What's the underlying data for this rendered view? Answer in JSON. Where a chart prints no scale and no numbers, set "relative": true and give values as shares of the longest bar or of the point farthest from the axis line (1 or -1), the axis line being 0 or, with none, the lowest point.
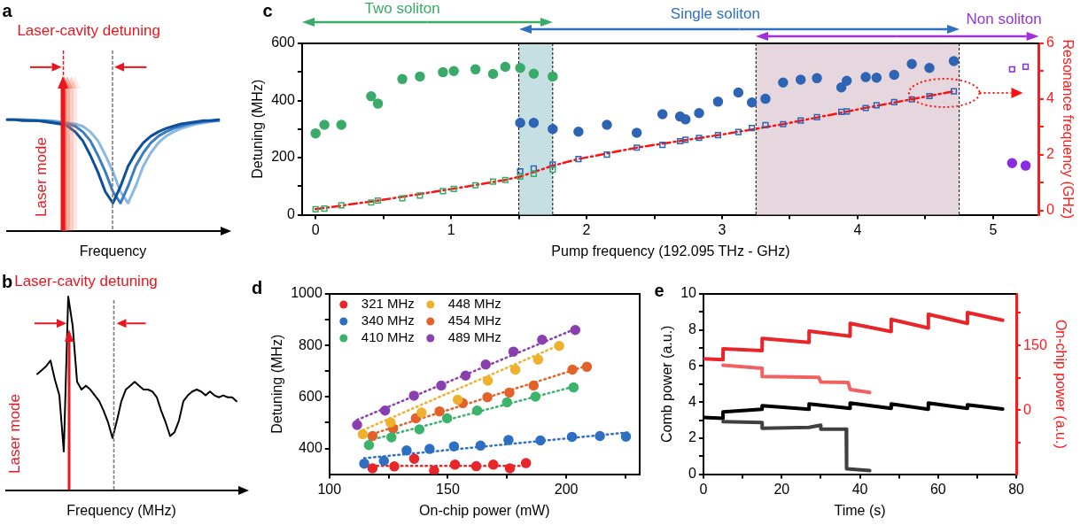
{
  "chart_data": [
    {
      "type": "line",
      "title": "a",
      "xlabel": "Frequency",
      "annotations": [
        "Laser-cavity detuning",
        "Laser mode"
      ],
      "relative": true,
      "tick_labels": false,
      "categories": [
        null,
        null,
        null,
        null,
        null,
        null,
        null,
        null,
        null,
        null,
        null,
        null,
        null,
        null,
        null,
        null,
        null,
        null,
        null,
        null,
        null,
        null,
        null,
        null,
        null,
        null,
        null,
        null,
        null
      ],
      "series": [
        {
          "color": "#0d4f9c",
          "values": [
            1.0,
            1.0,
            0.99,
            0.99,
            0.99,
            0.98,
            0.97,
            0.96,
            0.94,
            0.89,
            0.81,
            0.68,
            0.53,
            0.35,
            0.25,
            0.4,
            0.58,
            0.7,
            0.79,
            0.85,
            0.89,
            0.92,
            0.94,
            0.96,
            0.97,
            0.98,
            0.99,
            0.99,
            1.0
          ]
        },
        {
          "color": "#3a7dc0",
          "values": [
            1.0,
            1.0,
            1.0,
            0.99,
            0.99,
            0.99,
            0.98,
            0.97,
            0.96,
            0.94,
            0.89,
            0.81,
            0.68,
            0.53,
            0.35,
            0.25,
            0.4,
            0.58,
            0.7,
            0.79,
            0.85,
            0.89,
            0.92,
            0.94,
            0.96,
            0.97,
            0.98,
            0.99,
            0.99
          ]
        },
        {
          "color": "#8ab8e0",
          "values": [
            1.0,
            1.0,
            1.0,
            1.0,
            0.99,
            0.99,
            0.99,
            0.98,
            0.97,
            0.96,
            0.94,
            0.89,
            0.81,
            0.68,
            0.53,
            0.35,
            0.25,
            0.4,
            0.58,
            0.7,
            0.79,
            0.85,
            0.89,
            0.92,
            0.94,
            0.96,
            0.97,
            0.98,
            0.99
          ]
        }
      ]
    },
    {
      "type": "line",
      "title": "b",
      "xlabel": "Frequency (MHz)",
      "annotations": [
        "Laser-cavity detuning",
        "Laser mode"
      ],
      "relative": true,
      "tick_labels": false,
      "categories": [
        null,
        null,
        null,
        null,
        null,
        null,
        null,
        null,
        null,
        null,
        null,
        null,
        null,
        null,
        null,
        null,
        null,
        null,
        null,
        null,
        null,
        null,
        null,
        null,
        null,
        null,
        null,
        null,
        null,
        null,
        null,
        null,
        null,
        null,
        null,
        null,
        null,
        null,
        null,
        null,
        null,
        null,
        null,
        null,
        null,
        null,
        null,
        null,
        null,
        null,
        null,
        null,
        null
      ],
      "series": [
        {
          "color": "#000000",
          "values": [
            null,
            null,
            null,
            null,
            null,
            null,
            null,
            0.6,
            0.62,
            0.64,
            0.67,
            0.57,
            0.49,
            0.2,
            1.0,
            0.85,
            0.56,
            0.52,
            0.54,
            0.52,
            0.49,
            0.46,
            0.41,
            0.35,
            0.27,
            0.36,
            0.46,
            0.52,
            0.54,
            0.56,
            0.54,
            0.52,
            0.52,
            0.51,
            0.48,
            0.41,
            0.35,
            0.28,
            0.3,
            0.36,
            0.46,
            0.49,
            0.51,
            0.52,
            0.51,
            0.49,
            0.51,
            0.49,
            0.48,
            0.49,
            0.48,
            0.48,
            0.46
          ]
        }
      ]
    },
    {
      "type": "scatter",
      "title": "c",
      "xlabel": "Pump frequency (192.095 THz - GHz)",
      "ylabel": "Detuning (MHz)",
      "y2label": "Resonance frequency (GHz)",
      "annotations": [
        "Two soliton",
        "Single soliton",
        "Non soliton"
      ],
      "xlim": [
        -0.1,
        5.34
      ],
      "xticks": [
        0,
        {
          "value": 0.5,
          "label": null
        },
        1,
        {
          "value": 1.5,
          "label": null
        },
        2,
        {
          "value": 2.5,
          "label": null
        },
        3,
        {
          "value": 3.5,
          "label": null
        },
        4,
        {
          "value": 4.5,
          "label": null
        },
        5
      ],
      "ylim": [
        0,
        600
      ],
      "yticks": [
        0,
        {
          "value": 100,
          "label": null
        },
        200,
        {
          "value": 300,
          "label": null
        },
        400,
        {
          "value": 500,
          "label": null
        },
        600
      ],
      "y2lim": [
        -0.15,
        6
      ],
      "y2ticks": [
        0,
        {
          "value": 1,
          "label": null
        },
        2,
        {
          "value": 3,
          "label": null
        },
        4,
        {
          "value": 5,
          "label": null
        },
        6
      ],
      "bands": [
        {
          "axis": "x",
          "from": 1.5,
          "to": 1.75,
          "color": "#c6dfe2"
        },
        {
          "axis": "x",
          "from": 3.25,
          "to": 4.75,
          "color": "#e6d6de"
        }
      ],
      "series": [
        {
          "color": "#3aaa68",
          "marker": "circle",
          "x": [
            0,
            0.065,
            0.19,
            0.41,
            0.46,
            0.64,
            0.77,
            0.94,
            1.02,
            1.18,
            1.31,
            1.4,
            1.51,
            1.61,
            1.75
          ],
          "values": [
            285,
            315,
            315,
            415,
            389,
            475,
            484,
            499,
            503,
            509,
            493,
            518,
            514,
            494,
            484
          ]
        },
        {
          "color": "#2e64b4",
          "marker": "circle",
          "x": [
            1.51,
            1.61,
            1.75,
            1.94,
            2.15,
            2.37,
            2.56,
            2.69,
            2.73,
            2.83,
            2.97,
            3.12,
            3.22,
            3.32,
            3.45,
            3.58,
            3.7,
            3.88,
            3.92,
            4.06,
            4.14,
            4.27,
            4.4,
            4.53,
            4.71
          ],
          "values": [
            322,
            322,
            300,
            291,
            315,
            287,
            352,
            344,
            334,
            356,
            396,
            428,
            393,
            406,
            463,
            473,
            478,
            446,
            469,
            482,
            480,
            490,
            528,
            514,
            538
          ]
        },
        {
          "color": "#8a2be2",
          "marker": "circle",
          "x": [
            5.14,
            5.24
          ],
          "values": [
            181,
            172
          ]
        },
        {
          "color": "#3aaa68",
          "marker": "square",
          "axis": "y2",
          "x": [
            0,
            0.065,
            0.19,
            0.41,
            0.46,
            0.64,
            0.77,
            0.94,
            1.02,
            1.18,
            1.31,
            1.4,
            1.51,
            1.61,
            1.75
          ],
          "values": [
            0.05,
            0.07,
            0.19,
            0.29,
            0.36,
            0.44,
            0.54,
            0.7,
            0.78,
            0.91,
            1.04,
            1.1,
            1.22,
            1.32,
            1.47
          ]
        },
        {
          "color": "#2e64b4",
          "marker": "square",
          "axis": "y2",
          "x": [
            1.51,
            1.61,
            1.75,
            1.94,
            2.15,
            2.37,
            2.56,
            2.69,
            2.73,
            2.83,
            2.97,
            3.12,
            3.22,
            3.32,
            3.45,
            3.58,
            3.7,
            3.88,
            3.92,
            4.06,
            4.14,
            4.27,
            4.4,
            4.53,
            4.71
          ],
          "values": [
            1.41,
            1.51,
            1.65,
            1.85,
            2.01,
            2.26,
            2.36,
            2.49,
            2.54,
            2.61,
            2.71,
            2.82,
            2.96,
            3.07,
            3.1,
            3.23,
            3.35,
            3.54,
            3.56,
            3.68,
            3.78,
            3.89,
            3.99,
            4.11,
            4.28
          ]
        },
        {
          "color": "#8a2be2",
          "marker": "square",
          "axis": "y2",
          "x": [
            5.14,
            5.24
          ],
          "values": [
            5.07,
            5.16
          ]
        },
        {
          "type": "line",
          "color": "#ff1010",
          "marker": "none",
          "line_style": "dashed",
          "axis": "y2",
          "x": [
            0,
            0.46,
            1,
            1.4,
            1.51,
            1.75,
            1.94,
            2.37,
            3,
            3.45,
            4,
            4.71
          ],
          "values": [
            0.05,
            0.36,
            0.77,
            1.1,
            1.22,
            1.61,
            1.85,
            2.26,
            2.73,
            3.1,
            3.63,
            4.28
          ]
        }
      ]
    },
    {
      "type": "scatter",
      "title": "d",
      "xlabel": "On-chip power (mW)",
      "ylabel": "Detuning (MHz)",
      "legend": "top left",
      "marker": "circle",
      "xlim": [
        100,
        231
      ],
      "xticks": [
        100,
        {
          "value": 125,
          "label": null
        },
        150,
        {
          "value": 175,
          "label": null
        },
        200,
        {
          "value": 225,
          "label": null
        }
      ],
      "ylim": [
        300,
        1000
      ],
      "yticks": [
        400,
        {
          "value": 500,
          "label": null
        },
        600,
        {
          "value": 700,
          "label": null
        },
        800,
        {
          "value": 900,
          "label": null
        },
        1000
      ],
      "series": [
        {
          "name": "321 MHz",
          "color": "#e8262a",
          "x": [
            118.2,
            127.4,
            135.8,
            144.2,
            153,
            162,
            169.2,
            176.2,
            183
          ],
          "values": [
            323,
            330,
            360,
            314,
            337,
            331,
            337,
            323,
            343
          ]
        },
        {
          "name": "340 MHz",
          "color": "#2e6fc4",
          "x": [
            114.7,
            123,
            132.6,
            142.3,
            152.6,
            163.8,
            175.6,
            189.1,
            202.4,
            214.2,
            225.2
          ],
          "values": [
            341,
            352,
            392,
            398,
            408,
            411,
            433,
            431,
            445,
            448,
            446
          ]
        },
        {
          "name": "410 MHz",
          "color": "#3bb36a",
          "x": [
            116.7,
            126.2,
            138,
            149.7,
            162.4,
            175,
            187,
            203.1
          ],
          "values": [
            413,
            443,
            474,
            517,
            547,
            579,
            601,
            637
          ]
        },
        {
          "name": "448 MHz",
          "color": "#efb02e",
          "x": [
            114.1,
            125.8,
            138.9,
            154.2,
            166.9,
            178.5,
            188.1,
            197
          ],
          "values": [
            455,
            501,
            539,
            589,
            663,
            706,
            745,
            798
          ]
        },
        {
          "name": "454 MHz",
          "color": "#e2622a",
          "x": [
            118.2,
            126.9,
            136.5,
            146.5,
            156.3,
            166.7,
            176,
            186.2,
            202.6,
            208.7
          ],
          "values": [
            448,
            477,
            517,
            544,
            576,
            599,
            617,
            644,
            706,
            717
          ]
        },
        {
          "name": "489 MHz",
          "color": "#8a3fb0",
          "x": [
            111.7,
            123.5,
            135.7,
            147.2,
            157.5,
            166,
            177.7,
            189.8,
            203.8
          ],
          "values": [
            491,
            547,
            605,
            644,
            683,
            726,
            776,
            822,
            860
          ]
        },
        {
          "type": "line",
          "color": "#e8262a",
          "marker": "none",
          "line_style": "dotted",
          "x": [
            118,
            183
          ],
          "values": [
            332,
            332
          ]
        },
        {
          "type": "line",
          "color": "#2e6fc4",
          "marker": "none",
          "line_style": "dotted",
          "x": [
            114.7,
            226
          ],
          "values": [
            362,
            462
          ]
        },
        {
          "type": "line",
          "color": "#3bb36a",
          "marker": "none",
          "line_style": "dotted",
          "x": [
            116.7,
            203.1
          ],
          "values": [
            431,
            640
          ]
        },
        {
          "type": "line",
          "color": "#efb02e",
          "marker": "none",
          "line_style": "dotted",
          "x": [
            114.1,
            197
          ],
          "values": [
            471,
            801
          ]
        },
        {
          "type": "line",
          "color": "#e2622a",
          "marker": "none",
          "line_style": "dotted",
          "x": [
            118.2,
            208.7
          ],
          "values": [
            456,
            721
          ]
        },
        {
          "type": "line",
          "color": "#8a3fb0",
          "marker": "none",
          "line_style": "dotted",
          "x": [
            111.7,
            203.8
          ],
          "values": [
            511,
            864
          ]
        }
      ]
    },
    {
      "type": "line",
      "title": "e",
      "xlabel": "Time (s)",
      "ylabel": "Comb power (a.u.)",
      "y2label": "On-chip power (a.u.)",
      "xlim": [
        0,
        80
      ],
      "xticks": [
        0,
        {
          "value": 10,
          "label": null
        },
        20,
        {
          "value": 30,
          "label": null
        },
        40,
        {
          "value": 50,
          "label": null
        },
        60,
        {
          "value": 70,
          "label": null
        },
        80
      ],
      "ylim": [
        0,
        10
      ],
      "yticks": [
        0,
        {
          "value": 1,
          "label": null
        },
        2,
        {
          "value": 3,
          "label": null
        },
        4,
        {
          "value": 5,
          "label": null
        },
        6,
        {
          "value": 7,
          "label": null
        },
        8,
        {
          "value": 9,
          "label": null
        },
        10
      ],
      "y2lim": [
        -148,
        269
      ],
      "y2ticks": [
        {
          "value": -75,
          "label": null
        },
        0,
        {
          "value": 75,
          "label": null
        },
        150,
        {
          "value": 225,
          "label": null
        }
      ],
      "series": [
        {
          "color": "#e8262a",
          "axis": "y2",
          "x": [
            0,
            5,
            5,
            15,
            15,
            27,
            27,
            37.5,
            37.5,
            48,
            48,
            57.5,
            57.5,
            67.5,
            67.5,
            76.5
          ],
          "values": [
            119,
            117,
            142,
            138,
            166,
            157,
            183,
            171,
            201,
            182,
            210,
            190,
            222,
            201,
            226,
            208
          ]
        },
        {
          "color": "#f06262",
          "axis": "y2",
          "x": [
            5,
            15,
            15,
            29.5,
            30,
            37,
            37.5,
            42.5
          ],
          "values": [
            104,
            97,
            78,
            76,
            65,
            64,
            48,
            41
          ]
        },
        {
          "color": "#000000",
          "x": [
            0,
            5,
            5,
            15,
            15,
            27,
            27,
            37.5,
            37.5,
            48,
            48,
            57.5,
            57.5,
            67.5,
            67.5,
            76.5
          ],
          "values": [
            3.15,
            3.1,
            3.45,
            3.6,
            3.8,
            3.6,
            3.9,
            3.65,
            3.95,
            3.65,
            3.9,
            3.6,
            3.95,
            3.65,
            3.85,
            3.62
          ]
        },
        {
          "color": "#404040",
          "x": [
            5,
            15,
            15,
            27,
            30,
            30,
            36.5,
            36.6,
            42.5
          ],
          "values": [
            2.92,
            2.87,
            2.55,
            2.6,
            2.72,
            2.5,
            2.5,
            0.3,
            0.2
          ]
        }
      ]
    }
  ]
}
